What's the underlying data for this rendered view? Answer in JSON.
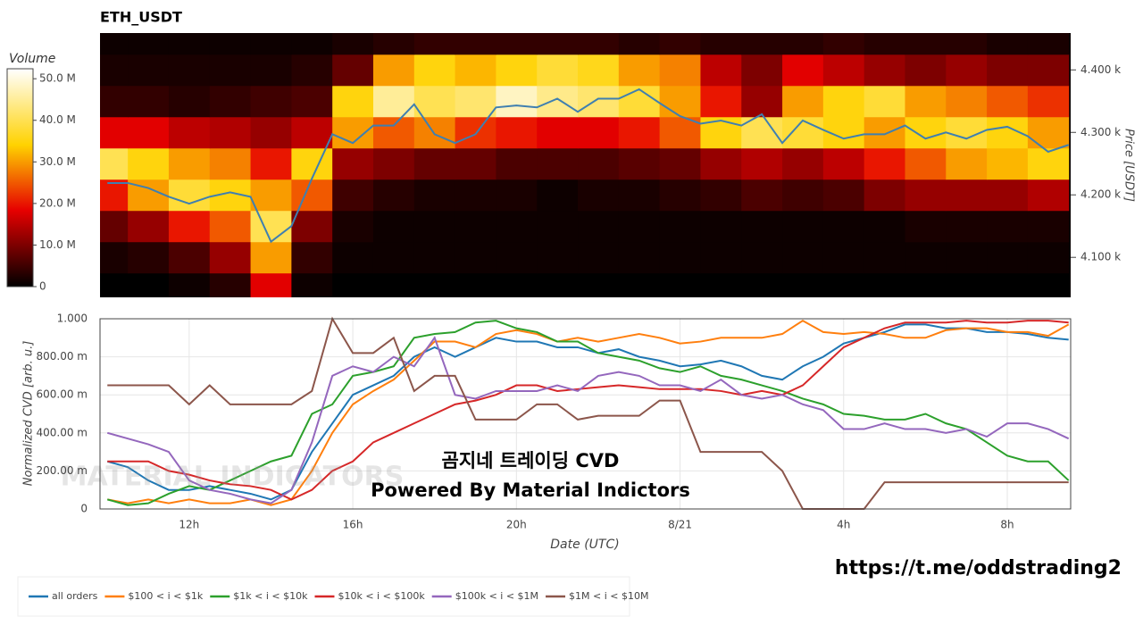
{
  "chart_data": [
    {
      "type": "heatmap",
      "title": "ETH_USDT",
      "ylabel": "Price [USDT]",
      "xlim": [
        9.82,
        33.55
      ],
      "ylim": [
        4036,
        4459
      ],
      "yticks": [
        {
          "value": 4100,
          "label": "4.100 k"
        },
        {
          "value": 4200,
          "label": "4.200 k"
        },
        {
          "value": 4300,
          "label": "4.300 k"
        },
        {
          "value": 4400,
          "label": "4.400 k"
        }
      ],
      "x": [
        10,
        11,
        12,
        13,
        14,
        15,
        16,
        17,
        18,
        19,
        20,
        21,
        22,
        23,
        24,
        25,
        26,
        27,
        28,
        29,
        30,
        31,
        32,
        33
      ],
      "y": [
        4050,
        4100,
        4150,
        4200,
        4250,
        4300,
        4350,
        4400,
        4450
      ],
      "z": [
        [
          0,
          0,
          1,
          3,
          18,
          1,
          0,
          0,
          0,
          0,
          0,
          0,
          0,
          0,
          0,
          0,
          0,
          0,
          0,
          0,
          0,
          0,
          0,
          0
        ],
        [
          2,
          3,
          6,
          12,
          30,
          4,
          1,
          1,
          1,
          1,
          1,
          1,
          1,
          1,
          1,
          1,
          1,
          1,
          1,
          1,
          1,
          1,
          1,
          1
        ],
        [
          8,
          12,
          20,
          25,
          40,
          10,
          2,
          1,
          1,
          1,
          1,
          1,
          1,
          1,
          1,
          1,
          1,
          1,
          1,
          1,
          2,
          2,
          2,
          2
        ],
        [
          20,
          30,
          38,
          35,
          30,
          25,
          5,
          3,
          2,
          2,
          2,
          1,
          2,
          2,
          3,
          4,
          6,
          5,
          6,
          10,
          12,
          12,
          12,
          14
        ],
        [
          40,
          35,
          30,
          28,
          20,
          35,
          12,
          10,
          8,
          8,
          6,
          6,
          6,
          7,
          8,
          12,
          14,
          12,
          15,
          20,
          25,
          30,
          32,
          35
        ],
        [
          18,
          18,
          15,
          14,
          12,
          15,
          30,
          25,
          28,
          22,
          20,
          18,
          18,
          20,
          25,
          35,
          40,
          38,
          35,
          30,
          35,
          38,
          35,
          30
        ],
        [
          4,
          4,
          3,
          4,
          5,
          6,
          35,
          45,
          40,
          42,
          48,
          44,
          42,
          38,
          30,
          20,
          12,
          30,
          35,
          38,
          30,
          28,
          25,
          22
        ],
        [
          2,
          2,
          2,
          2,
          2,
          3,
          8,
          30,
          35,
          32,
          35,
          38,
          36,
          30,
          28,
          15,
          10,
          18,
          15,
          12,
          10,
          12,
          10,
          10
        ],
        [
          1,
          1,
          1,
          1,
          1,
          1,
          2,
          3,
          4,
          4,
          4,
          4,
          4,
          3,
          4,
          3,
          3,
          3,
          4,
          3,
          3,
          3,
          2,
          2
        ]
      ],
      "colorbar": {
        "title": "Volume",
        "lim": [
          0,
          52.4
        ],
        "ticks": [
          0,
          {
            "value": 10,
            "label": "10.0 M"
          },
          {
            "value": 20,
            "label": "20.0 M"
          },
          {
            "value": 30,
            "label": "30.0 M"
          },
          {
            "value": 40,
            "label": "40.0 M"
          },
          {
            "value": 50,
            "label": "50.0 M"
          }
        ]
      },
      "line": {
        "color": "#3f7fb0",
        "x": [
          10,
          10.5,
          11,
          11.5,
          12,
          12.5,
          13,
          13.5,
          14,
          14.5,
          15,
          15.5,
          16,
          16.5,
          17,
          17.5,
          18,
          18.5,
          19,
          19.5,
          20,
          20.5,
          21,
          21.5,
          22,
          22.5,
          23,
          23.5,
          24,
          24.5,
          25,
          25.5,
          26,
          26.5,
          27,
          27.5,
          28,
          28.5,
          29,
          29.5,
          30,
          30.5,
          31,
          31.5,
          32,
          32.5,
          33,
          33.5
        ],
        "values": [
          4219,
          4219,
          4211,
          4197,
          4186,
          4197,
          4204,
          4197,
          4125,
          4150,
          4226,
          4297,
          4283,
          4311,
          4311,
          4345,
          4297,
          4283,
          4297,
          4340,
          4343,
          4340,
          4354,
          4333,
          4354,
          4354,
          4369,
          4347,
          4326,
          4314,
          4319,
          4311,
          4329,
          4283,
          4319,
          4304,
          4290,
          4297,
          4297,
          4311,
          4290,
          4300,
          4290,
          4304,
          4309,
          4294,
          4269,
          4280
        ]
      }
    },
    {
      "type": "line",
      "xlabel": "Date (UTC)",
      "ylabel": "Normalized CVD [arb. u.]",
      "grid": true,
      "legend": "bottom",
      "xlim": [
        9.82,
        33.55
      ],
      "ylim": [
        0,
        1
      ],
      "xticks": [
        {
          "value": 12,
          "label": "12h"
        },
        {
          "value": 16,
          "label": "16h"
        },
        {
          "value": 20,
          "label": "20h"
        },
        {
          "value": 24,
          "label": "8/21"
        },
        {
          "value": 28,
          "label": "4h"
        },
        {
          "value": 32,
          "label": "8h"
        }
      ],
      "yticks": [
        0,
        {
          "value": 0.2,
          "label": "200.00 m"
        },
        {
          "value": 0.4,
          "label": "400.00 m"
        },
        {
          "value": 0.6,
          "label": "600.00 m"
        },
        {
          "value": 0.8,
          "label": "800.00 m"
        },
        {
          "value": 1,
          "label": "1.000"
        }
      ],
      "annotations": [
        "곰지네 트레이딩 CVD",
        "Powered By Material Indictors"
      ],
      "watermark": "MATERIAL INDICATORS",
      "x": [
        10,
        10.5,
        11,
        11.5,
        12,
        12.5,
        13,
        13.5,
        14,
        14.5,
        15,
        15.5,
        16,
        16.5,
        17,
        17.5,
        18,
        18.5,
        19,
        19.5,
        20,
        20.5,
        21,
        21.5,
        22,
        22.5,
        23,
        23.5,
        24,
        24.5,
        25,
        25.5,
        26,
        26.5,
        27,
        27.5,
        28,
        28.5,
        29,
        29.5,
        30,
        30.5,
        31,
        31.5,
        32,
        32.5,
        33,
        33.5
      ],
      "series": [
        {
          "name": "all orders",
          "color": "#1f77b4",
          "values": [
            0.25,
            0.22,
            0.15,
            0.1,
            0.1,
            0.12,
            0.1,
            0.08,
            0.05,
            0.1,
            0.3,
            0.45,
            0.6,
            0.65,
            0.7,
            0.8,
            0.85,
            0.8,
            0.85,
            0.9,
            0.88,
            0.88,
            0.85,
            0.85,
            0.82,
            0.84,
            0.8,
            0.78,
            0.75,
            0.76,
            0.78,
            0.75,
            0.7,
            0.68,
            0.75,
            0.8,
            0.87,
            0.9,
            0.93,
            0.97,
            0.97,
            0.95,
            0.95,
            0.93,
            0.93,
            0.92,
            0.9,
            0.89
          ]
        },
        {
          "name": "$100 < i < $1k",
          "color": "#ff7f0e",
          "values": [
            0.05,
            0.03,
            0.05,
            0.03,
            0.05,
            0.03,
            0.03,
            0.05,
            0.02,
            0.05,
            0.2,
            0.4,
            0.55,
            0.62,
            0.68,
            0.78,
            0.88,
            0.88,
            0.85,
            0.92,
            0.94,
            0.92,
            0.88,
            0.9,
            0.88,
            0.9,
            0.92,
            0.9,
            0.87,
            0.88,
            0.9,
            0.9,
            0.9,
            0.92,
            0.99,
            0.93,
            0.92,
            0.93,
            0.92,
            0.9,
            0.9,
            0.94,
            0.95,
            0.95,
            0.93,
            0.93,
            0.91,
            0.97
          ]
        },
        {
          "name": "$1k < i < $10k",
          "color": "#2ca02c",
          "values": [
            0.05,
            0.02,
            0.03,
            0.08,
            0.12,
            0.1,
            0.15,
            0.2,
            0.25,
            0.28,
            0.5,
            0.55,
            0.7,
            0.72,
            0.75,
            0.9,
            0.92,
            0.93,
            0.98,
            0.99,
            0.95,
            0.93,
            0.88,
            0.88,
            0.82,
            0.8,
            0.78,
            0.74,
            0.72,
            0.75,
            0.7,
            0.68,
            0.65,
            0.62,
            0.58,
            0.55,
            0.5,
            0.49,
            0.47,
            0.47,
            0.5,
            0.45,
            0.42,
            0.35,
            0.28,
            0.25,
            0.25,
            0.15
          ]
        },
        {
          "name": "$10k < i < $100k",
          "color": "#d62728",
          "values": [
            0.25,
            0.25,
            0.25,
            0.2,
            0.18,
            0.15,
            0.13,
            0.12,
            0.1,
            0.05,
            0.1,
            0.2,
            0.25,
            0.35,
            0.4,
            0.45,
            0.5,
            0.55,
            0.57,
            0.6,
            0.65,
            0.65,
            0.62,
            0.63,
            0.64,
            0.65,
            0.64,
            0.63,
            0.63,
            0.63,
            0.62,
            0.6,
            0.62,
            0.6,
            0.65,
            0.75,
            0.85,
            0.9,
            0.95,
            0.98,
            0.98,
            0.98,
            0.99,
            0.98,
            0.98,
            0.99,
            0.99,
            0.98
          ]
        },
        {
          "name": "$100k < i < $1M",
          "color": "#9467bd",
          "values": [
            0.4,
            0.37,
            0.34,
            0.3,
            0.15,
            0.1,
            0.08,
            0.05,
            0.03,
            0.1,
            0.35,
            0.7,
            0.75,
            0.72,
            0.8,
            0.75,
            0.9,
            0.6,
            0.58,
            0.62,
            0.62,
            0.62,
            0.65,
            0.62,
            0.7,
            0.72,
            0.7,
            0.65,
            0.65,
            0.62,
            0.68,
            0.6,
            0.58,
            0.6,
            0.55,
            0.52,
            0.42,
            0.42,
            0.45,
            0.42,
            0.42,
            0.4,
            0.42,
            0.38,
            0.45,
            0.45,
            0.42,
            0.37
          ]
        },
        {
          "name": "$1M < i < $10M",
          "color": "#8c564b",
          "values": [
            0.65,
            0.65,
            0.65,
            0.65,
            0.55,
            0.65,
            0.55,
            0.55,
            0.55,
            0.55,
            0.62,
            1.0,
            0.82,
            0.82,
            0.9,
            0.62,
            0.7,
            0.7,
            0.47,
            0.47,
            0.47,
            0.55,
            0.55,
            0.47,
            0.49,
            0.49,
            0.49,
            0.57,
            0.57,
            0.3,
            0.3,
            0.3,
            0.3,
            0.2,
            0,
            0,
            0,
            0,
            0.14,
            0.14,
            0.14,
            0.14,
            0.14,
            0.14,
            0.14,
            0.14,
            0.14,
            0.14
          ]
        }
      ]
    }
  ],
  "link": "https://t.me/oddstrading2"
}
